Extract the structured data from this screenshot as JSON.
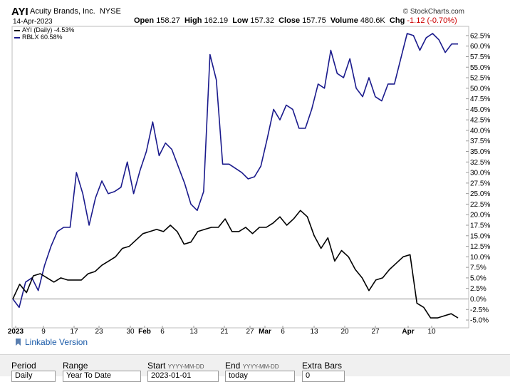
{
  "header": {
    "symbol": "AYI",
    "company": "Acuity Brands, Inc.",
    "exchange": "NYSE",
    "date": "14-Apr-2023",
    "brand": "© StockCharts.com",
    "open_label": "Open",
    "open": "158.27",
    "high_label": "High",
    "high": "162.19",
    "low_label": "Low",
    "low": "157.32",
    "close_label": "Close",
    "close": "157.75",
    "volume_label": "Volume",
    "volume": "480.6K",
    "chg_label": "Chg",
    "chg": "-1.12 (-0.70%)"
  },
  "legend": [
    {
      "text": "AYI (Daily) -4.53%",
      "color": "#000000"
    },
    {
      "text": "RBLX 60.58%",
      "color": "#1a1a8c"
    }
  ],
  "colors": {
    "ayi": "#000000",
    "rblx": "#1a1a8c",
    "zero_line": "#888888",
    "grid": "#d9d9d9",
    "chg_negative": "#cc0000"
  },
  "links": {
    "linkable": "Linkable Version"
  },
  "controls": {
    "period_label": "Period",
    "period_value": "Daily",
    "range_label": "Range",
    "range_value": "Year To Date",
    "start_label": "Start",
    "start_hint": "YYYY-MM-DD",
    "start_value": "2023-01-01",
    "end_label": "End",
    "end_hint": "YYYY-MM-DD",
    "end_value": "today",
    "extra_label": "Extra Bars",
    "extra_value": "0"
  },
  "chart_data": {
    "type": "line",
    "x_label_values": [
      "2023",
      "9",
      "17",
      "23",
      "30",
      "Feb",
      "6",
      "13",
      "21",
      "27",
      "Mar",
      "6",
      "13",
      "20",
      "27",
      "Apr",
      "10"
    ],
    "y_tick_labels": [
      "62.5%",
      "60.0%",
      "57.5%",
      "55.0%",
      "52.5%",
      "50.0%",
      "47.5%",
      "45.0%",
      "42.5%",
      "40.0%",
      "37.5%",
      "35.0%",
      "32.5%",
      "30.0%",
      "27.5%",
      "25.0%",
      "22.5%",
      "20.0%",
      "17.5%",
      "15.0%",
      "12.5%",
      "10.0%",
      "7.5%",
      "5.0%",
      "2.5%",
      "0.0%",
      "-2.5%",
      "-5.0%"
    ],
    "ylim": [
      -5.5,
      63.5
    ],
    "zero_line": 0,
    "grid": false,
    "series": [
      {
        "name": "AYI (Daily) -4.53%",
        "values": [
          0.0,
          3.5,
          1.5,
          5.5,
          6.0,
          5.0,
          4.0,
          5.0,
          4.5,
          4.5,
          4.5,
          6.0,
          6.5,
          8.0,
          9.0,
          10.0,
          12.0,
          12.5,
          14.0,
          15.5,
          16.0,
          16.5,
          16.0,
          17.5,
          16.0,
          13.0,
          13.5,
          16.0,
          16.5,
          17.0,
          17.0,
          19.0,
          16.0,
          16.0,
          17.0,
          15.5,
          17.0,
          17.0,
          18.0,
          19.5,
          17.5,
          19.0,
          21.0,
          19.5,
          15.0,
          12.0,
          14.5,
          9.0,
          11.5,
          10.0,
          7.0,
          5.0,
          2.0,
          4.5,
          5.0,
          7.0,
          8.5,
          10.0,
          10.5,
          -1.0,
          -2.0,
          -4.5,
          -4.5,
          -4.0,
          -3.5,
          -4.5
        ]
      },
      {
        "name": "RBLX 60.58%",
        "values": [
          0.0,
          -2.0,
          4.0,
          5.0,
          2.0,
          8.0,
          12.5,
          16.0,
          17.0,
          17.0,
          30.0,
          25.0,
          17.5,
          24.0,
          28.0,
          25.0,
          25.5,
          26.5,
          32.5,
          25.0,
          30.5,
          35.0,
          42.0,
          34.0,
          37.0,
          35.5,
          31.5,
          27.5,
          22.5,
          21.0,
          25.5,
          58.0,
          52.0,
          32.0,
          32.0,
          31.0,
          30.0,
          28.5,
          29.0,
          31.5,
          38.0,
          45.0,
          42.5,
          46.0,
          45.0,
          40.5,
          40.5,
          45.0,
          51.0,
          50.0,
          59.0,
          53.5,
          52.5,
          57.0,
          50.0,
          48.0,
          52.5,
          48.0,
          47.0,
          51.0,
          51.0,
          57.0,
          63.0,
          62.5,
          59.0,
          62.0,
          63.0,
          61.5,
          58.5,
          60.5,
          60.5
        ]
      }
    ]
  }
}
